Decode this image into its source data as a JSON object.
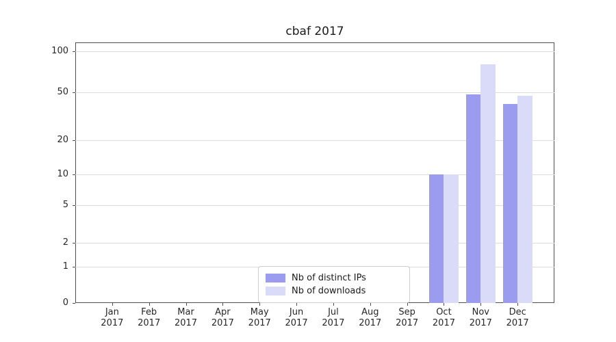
{
  "title": "cbaf 2017",
  "chart_data": {
    "type": "bar",
    "title": "cbaf 2017",
    "categories": [
      "Jan",
      "Feb",
      "Mar",
      "Apr",
      "May",
      "Jun",
      "Jul",
      "Aug",
      "Sep",
      "Oct",
      "Nov",
      "Dec"
    ],
    "year_label": "2017",
    "series": [
      {
        "name": "Nb of distinct IPs",
        "color": "#9b9bef",
        "values": [
          0,
          0,
          0,
          0,
          0,
          0,
          0,
          0,
          0,
          10,
          48,
          40
        ]
      },
      {
        "name": "Nb of downloads",
        "color": "#dadaf9",
        "values": [
          0,
          0,
          0,
          0,
          0,
          0,
          0,
          0,
          0,
          10,
          80,
          47
        ]
      }
    ],
    "xlabel": "",
    "ylabel": "",
    "y_ticks": [
      0,
      1,
      2,
      5,
      10,
      20,
      50,
      100
    ],
    "ylim": [
      0,
      110
    ],
    "scale": "symlog",
    "grid": "horizontal",
    "grid_color": "#dcdcdc",
    "legend_position": "lower center"
  }
}
